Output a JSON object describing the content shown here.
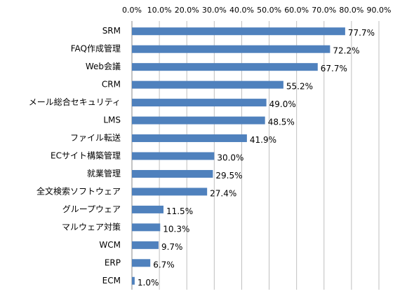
{
  "chart_data": {
    "type": "barh",
    "categories": [
      "SRM",
      "FAQ作成管理",
      "Web会議",
      "CRM",
      "メール総合セキュリティ",
      "LMS",
      "ファイル転送",
      "ECサイト構築管理",
      "就業管理",
      "全文検索ソフトウェア",
      "グループウェア",
      "マルウェア対策",
      "WCM",
      "ERP",
      "ECM"
    ],
    "values": [
      77.7,
      72.2,
      67.7,
      55.2,
      49.0,
      48.5,
      41.9,
      30.0,
      29.5,
      27.4,
      11.5,
      10.3,
      9.7,
      6.7,
      1.0
    ],
    "value_labels": [
      "77.7%",
      "72.2%",
      "67.7%",
      "55.2%",
      "49.0%",
      "48.5%",
      "41.9%",
      "30.0%",
      "29.5%",
      "27.4%",
      "11.5%",
      "10.3%",
      "9.7%",
      "6.7%",
      "1.0%"
    ],
    "color": "#4f81bd",
    "xlim": [
      0,
      90
    ],
    "xticks": [
      {
        "value": 0,
        "label": "0.0%"
      },
      {
        "value": 10,
        "label": "10.0%"
      },
      {
        "value": 20,
        "label": "20.0%"
      },
      {
        "value": 30,
        "label": "30.0%"
      },
      {
        "value": 40,
        "label": "40.0%"
      },
      {
        "value": 50,
        "label": "50.0%"
      },
      {
        "value": 60,
        "label": "60.0%"
      },
      {
        "value": 70,
        "label": "70.0%"
      },
      {
        "value": 80,
        "label": "80.0%"
      },
      {
        "value": 90,
        "label": "90.0%"
      }
    ],
    "grid": true
  }
}
